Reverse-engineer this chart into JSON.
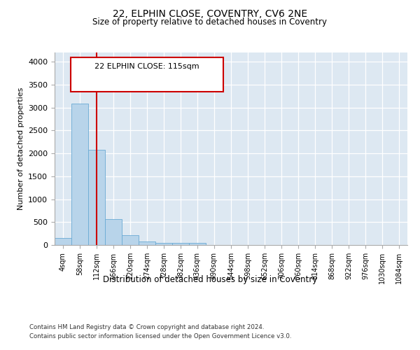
{
  "title1": "22, ELPHIN CLOSE, COVENTRY, CV6 2NE",
  "title2": "Size of property relative to detached houses in Coventry",
  "xlabel": "Distribution of detached houses by size in Coventry",
  "ylabel": "Number of detached properties",
  "bin_labels": [
    "4sqm",
    "58sqm",
    "112sqm",
    "166sqm",
    "220sqm",
    "274sqm",
    "328sqm",
    "382sqm",
    "436sqm",
    "490sqm",
    "544sqm",
    "598sqm",
    "652sqm",
    "706sqm",
    "760sqm",
    "814sqm",
    "868sqm",
    "922sqm",
    "976sqm",
    "1030sqm",
    "1084sqm"
  ],
  "bar_values": [
    150,
    3080,
    2080,
    570,
    215,
    75,
    50,
    45,
    45,
    0,
    0,
    0,
    0,
    0,
    0,
    0,
    0,
    0,
    0,
    0,
    0
  ],
  "bar_color": "#b8d4ea",
  "bar_edgecolor": "#6aaad4",
  "vline_x": 2,
  "vline_color": "#cc0000",
  "annotation_line1": "22 ELPHIN CLOSE: 115sqm",
  "ylim": [
    0,
    4200
  ],
  "yticks": [
    0,
    500,
    1000,
    1500,
    2000,
    2500,
    3000,
    3500,
    4000
  ],
  "footer1": "Contains HM Land Registry data © Crown copyright and database right 2024.",
  "footer2": "Contains public sector information licensed under the Open Government Licence v3.0.",
  "bg_color": "#dde8f2",
  "plot_bg_color": "#ffffff"
}
